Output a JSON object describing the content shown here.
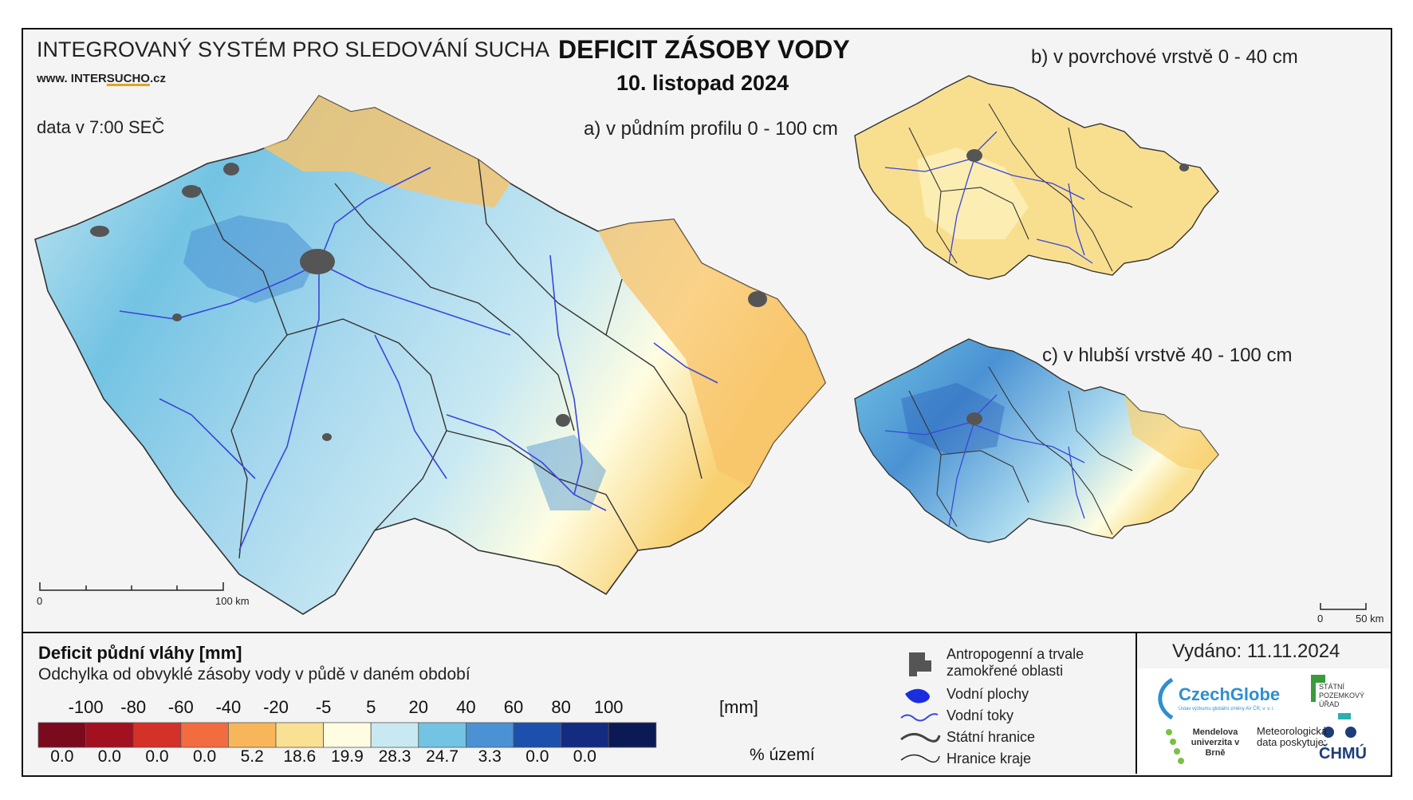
{
  "header": {
    "org": "INTEGROVANÝ SYSTÉM PRO SLEDOVÁNÍ SUCHA",
    "web_prefix": "www. INTER",
    "web_suffix": "SUCHO",
    "web_tld": ".cz",
    "data_time": "data v 7:00 SEČ"
  },
  "title": {
    "main": "DEFICIT ZÁSOBY VODY",
    "date": "10. listopad 2024"
  },
  "maps": {
    "a": "a) v půdním profilu 0 - 100 cm",
    "b": "b) v povrchové vrstvě 0 - 40 cm",
    "c": "c) v hlubší vrstvě 40 - 100 cm",
    "scale_main": {
      "zero": "0",
      "end": "100 km"
    },
    "scale_small": {
      "zero": "0",
      "end": "50 km"
    }
  },
  "legend": {
    "title": "Deficit půdní vláhy  [mm]",
    "description": "Odchylka od obvyklé zásoby vody v půdě v daném období",
    "ticks": [
      "-100",
      "-80",
      "-60",
      "-40",
      "-20",
      "-5",
      "5",
      "20",
      "40",
      "60",
      "80",
      "100"
    ],
    "unit": "[mm]",
    "colors": [
      "#7a0b1e",
      "#a3101f",
      "#d43128",
      "#f26c3f",
      "#f8b65a",
      "#f9e092",
      "#fefde2",
      "#c9e9f2",
      "#73c3e3",
      "#4a92d3",
      "#1d50ac",
      "#142b82",
      "#0b1a55"
    ],
    "percent_values": [
      "0.0",
      "0.0",
      "0.0",
      "0.0",
      "5.2",
      "18.6",
      "19.9",
      "28.3",
      "24.7",
      "3.3",
      "0.0",
      "0.0"
    ],
    "percent_unit": "% území"
  },
  "symbols": {
    "anthropogenic": "Antropogenní a trvale zamokřené oblasti",
    "water_bodies": "Vodní plochy",
    "rivers": "Vodní toky",
    "state_border": "Státní hranice",
    "region_border": "Hranice kraje"
  },
  "issued": "Vydáno: 11.11.2024",
  "logos": {
    "czechglobe": "CzechGlobe",
    "czechglobe_sub": "Ústav výzkumu globální změny AV ČR, v. v. i.",
    "spu": "STÁTNÍ POZEMKOVÝ ÚŘAD",
    "mendel": "Mendelova univerzita v Brně",
    "meteo": "Meteorologická data poskytuje:",
    "chmu": "ČHMÚ"
  }
}
